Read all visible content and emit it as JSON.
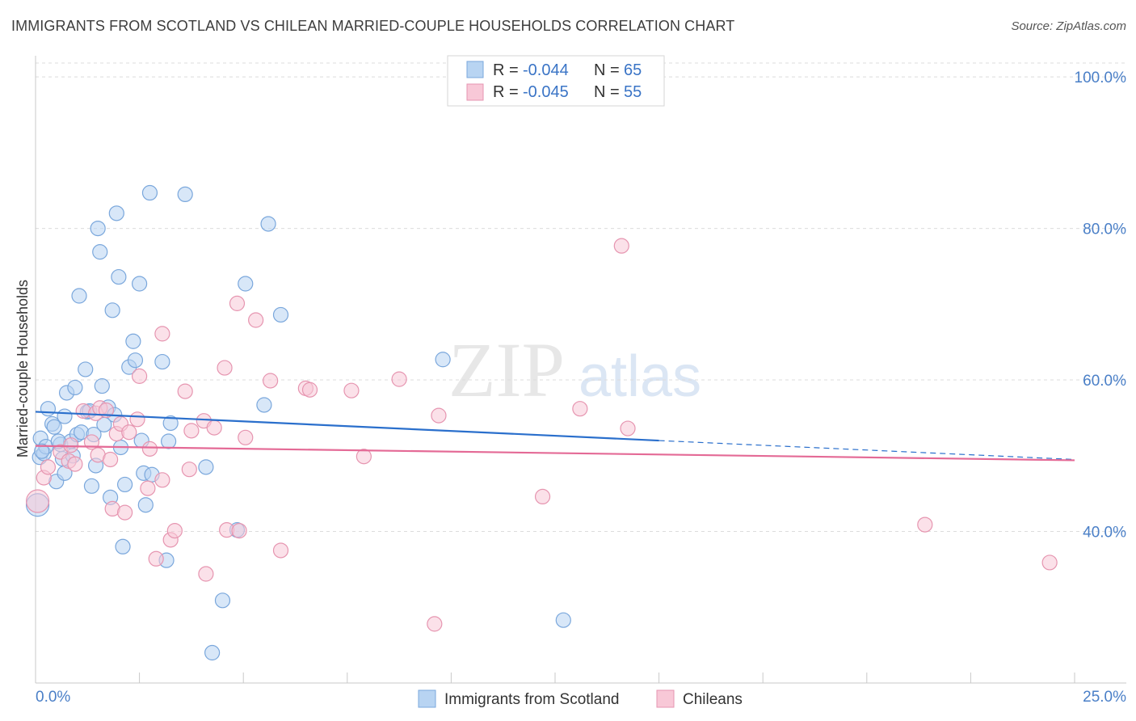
{
  "title": "IMMIGRANTS FROM SCOTLAND VS CHILEAN MARRIED-COUPLE HOUSEHOLDS CORRELATION CHART",
  "source": "Source: ZipAtlas.com",
  "watermark": {
    "zip": "ZIP",
    "atlas": "atlas"
  },
  "colors": {
    "blue_fill": "#b8d4f2",
    "blue_stroke": "#7aa7dc",
    "blue_line": "#2a6fcc",
    "pink_fill": "#f8c8d7",
    "pink_stroke": "#e695b0",
    "pink_line": "#e46a96",
    "tick_text": "#4a7fc7",
    "grid": "#dcdcdc"
  },
  "legend": {
    "rows": [
      {
        "r_label": "R = ",
        "r_value": "-0.044",
        "n_label": "N = ",
        "n_value": "65"
      },
      {
        "r_label": "R = ",
        "r_value": "-0.045",
        "n_label": "N = ",
        "n_value": "55"
      }
    ]
  },
  "chart_data": {
    "type": "scatter",
    "xlabel": "",
    "ylabel": "Married-couple Households",
    "xlim": [
      0,
      25
    ],
    "ylim": [
      20,
      103
    ],
    "x_tick_labels": [
      "0.0%",
      "25.0%"
    ],
    "y_ticks": [
      40,
      60,
      80,
      100
    ],
    "y_tick_labels": [
      "40.0%",
      "60.0%",
      "80.0%",
      "100.0%"
    ],
    "grid": true,
    "series": [
      {
        "name": "Immigrants from Scotland",
        "color": "blue",
        "trend": {
          "x0": 0,
          "y0": 55.8,
          "x1": 15,
          "y1": 52.0,
          "dash_to_x": 25,
          "dash_to_y": 49.5
        },
        "points": [
          [
            0.05,
            43.5
          ],
          [
            0.1,
            49.8
          ],
          [
            0.12,
            52.3
          ],
          [
            0.2,
            50.3
          ],
          [
            0.25,
            51.2
          ],
          [
            0.3,
            56.2
          ],
          [
            0.4,
            54.2
          ],
          [
            0.45,
            53.8
          ],
          [
            0.5,
            46.6
          ],
          [
            0.6,
            51.5
          ],
          [
            0.65,
            49.6
          ],
          [
            0.7,
            47.7
          ],
          [
            0.7,
            55.2
          ],
          [
            0.75,
            58.3
          ],
          [
            0.85,
            51.9
          ],
          [
            0.9,
            50.0
          ],
          [
            0.95,
            59.0
          ],
          [
            1.0,
            52.8
          ],
          [
            1.05,
            71.1
          ],
          [
            1.1,
            53.1
          ],
          [
            1.2,
            61.4
          ],
          [
            1.25,
            55.8
          ],
          [
            1.3,
            55.9
          ],
          [
            1.35,
            46.0
          ],
          [
            1.4,
            52.8
          ],
          [
            1.45,
            48.7
          ],
          [
            1.5,
            80.0
          ],
          [
            1.55,
            76.9
          ],
          [
            1.6,
            59.2
          ],
          [
            1.65,
            54.1
          ],
          [
            1.75,
            56.4
          ],
          [
            1.8,
            44.5
          ],
          [
            1.85,
            69.2
          ],
          [
            1.9,
            55.4
          ],
          [
            1.95,
            82.0
          ],
          [
            2.0,
            73.6
          ],
          [
            2.05,
            51.1
          ],
          [
            2.1,
            38.0
          ],
          [
            2.15,
            46.2
          ],
          [
            2.25,
            61.7
          ],
          [
            2.35,
            65.1
          ],
          [
            2.4,
            62.6
          ],
          [
            2.5,
            72.7
          ],
          [
            2.55,
            52.0
          ],
          [
            2.6,
            47.7
          ],
          [
            2.65,
            43.5
          ],
          [
            2.75,
            84.7
          ],
          [
            2.8,
            47.5
          ],
          [
            3.05,
            62.4
          ],
          [
            3.15,
            36.2
          ],
          [
            3.2,
            51.9
          ],
          [
            3.25,
            54.3
          ],
          [
            3.6,
            84.5
          ],
          [
            4.1,
            48.5
          ],
          [
            4.25,
            24.0
          ],
          [
            4.5,
            30.9
          ],
          [
            4.85,
            40.2
          ],
          [
            5.05,
            72.7
          ],
          [
            5.5,
            56.7
          ],
          [
            5.6,
            80.6
          ],
          [
            5.9,
            68.6
          ],
          [
            9.8,
            62.7
          ],
          [
            12.7,
            28.3
          ],
          [
            0.15,
            50.6
          ],
          [
            0.55,
            51.9
          ]
        ]
      },
      {
        "name": "Chileans",
        "color": "pink",
        "trend": {
          "x0": 0,
          "y0": 51.3,
          "x1": 25,
          "y1": 49.4
        },
        "points": [
          [
            0.05,
            44.0
          ],
          [
            0.2,
            47.1
          ],
          [
            0.3,
            48.5
          ],
          [
            0.6,
            50.5
          ],
          [
            0.8,
            49.3
          ],
          [
            0.85,
            51.4
          ],
          [
            0.95,
            48.9
          ],
          [
            1.15,
            55.9
          ],
          [
            1.35,
            51.8
          ],
          [
            1.45,
            55.6
          ],
          [
            1.5,
            50.1
          ],
          [
            1.55,
            56.3
          ],
          [
            1.7,
            56.0
          ],
          [
            1.8,
            49.5
          ],
          [
            1.85,
            43.0
          ],
          [
            1.95,
            52.9
          ],
          [
            2.05,
            54.2
          ],
          [
            2.15,
            42.5
          ],
          [
            2.25,
            53.1
          ],
          [
            2.45,
            54.8
          ],
          [
            2.5,
            60.5
          ],
          [
            2.7,
            45.7
          ],
          [
            2.75,
            50.9
          ],
          [
            2.9,
            36.4
          ],
          [
            3.05,
            46.8
          ],
          [
            3.05,
            66.1
          ],
          [
            3.25,
            38.9
          ],
          [
            3.35,
            40.1
          ],
          [
            3.6,
            58.5
          ],
          [
            3.7,
            48.2
          ],
          [
            3.75,
            53.3
          ],
          [
            4.05,
            54.6
          ],
          [
            4.1,
            34.4
          ],
          [
            4.3,
            53.7
          ],
          [
            4.55,
            61.6
          ],
          [
            4.6,
            40.2
          ],
          [
            4.85,
            70.1
          ],
          [
            4.9,
            40.1
          ],
          [
            5.05,
            52.4
          ],
          [
            5.3,
            67.9
          ],
          [
            5.65,
            59.9
          ],
          [
            5.9,
            37.5
          ],
          [
            6.5,
            58.9
          ],
          [
            6.6,
            58.7
          ],
          [
            7.6,
            58.6
          ],
          [
            7.9,
            49.9
          ],
          [
            8.75,
            60.1
          ],
          [
            9.6,
            27.8
          ],
          [
            9.7,
            55.3
          ],
          [
            12.2,
            44.6
          ],
          [
            13.1,
            56.2
          ],
          [
            14.1,
            77.7
          ],
          [
            14.25,
            53.6
          ],
          [
            21.4,
            40.9
          ],
          [
            24.4,
            35.9
          ]
        ]
      }
    ]
  },
  "bottom_legend": [
    {
      "label": "Immigrants from Scotland"
    },
    {
      "label": "Chileans"
    }
  ]
}
